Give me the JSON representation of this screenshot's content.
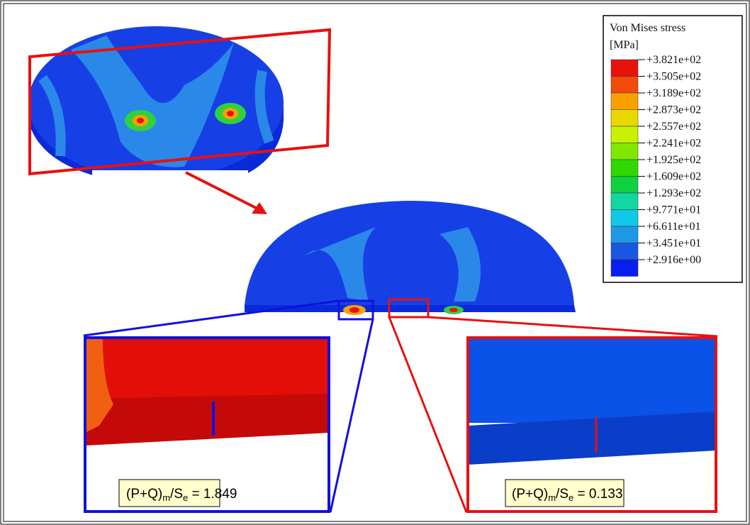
{
  "legend": {
    "title": "Von Mises stress",
    "unit": "[MPa]",
    "labels": [
      "+3.821e+02",
      "+3.505e+02",
      "+3.189e+02",
      "+2.873e+02",
      "+2.557e+02",
      "+2.241e+02",
      "+1.925e+02",
      "+1.609e+02",
      "+1.293e+02",
      "+9.771e+01",
      "+6.611e+01",
      "+3.451e+01",
      "+2.916e+00"
    ],
    "colors": [
      "#e8120c",
      "#f24a08",
      "#f8a000",
      "#e8d800",
      "#c8f000",
      "#80e800",
      "#30d800",
      "#10d040",
      "#10d8a0",
      "#10c8e8",
      "#2098e8",
      "#1a58e0",
      "#0a1ef0"
    ]
  },
  "annotations": [
    {
      "lead": "(P+Q)",
      "sub1": "m",
      "mid": "/S",
      "sub2": "e",
      "value": " = 1.849"
    },
    {
      "lead": "(P+Q)",
      "sub1": "m",
      "mid": "/S",
      "sub2": "e",
      "value": " = 0.133"
    }
  ]
}
